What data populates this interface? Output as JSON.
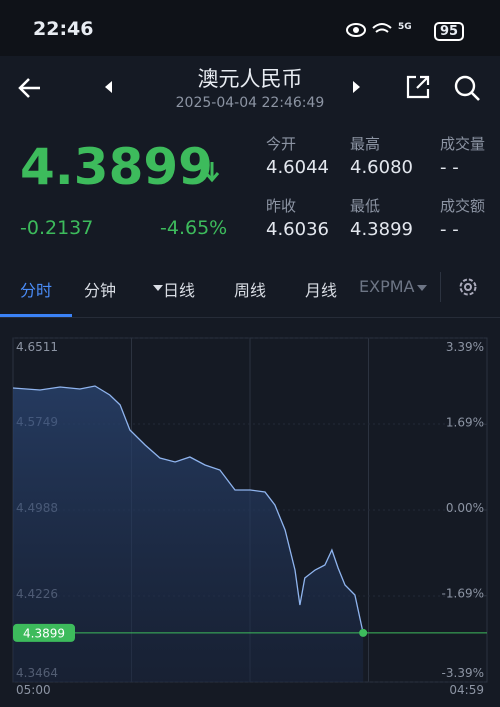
{
  "status": {
    "time": "22:46",
    "network": "5G",
    "battery": "95"
  },
  "header": {
    "title": "澳元人民币",
    "datetime": "2025-04-04 22:46:49"
  },
  "quote": {
    "price": "4.3899",
    "change": "-0.2137",
    "change_pct": "-4.65%",
    "stats": [
      {
        "label": "今开",
        "value": "4.6044"
      },
      {
        "label": "最高",
        "value": "4.6080"
      },
      {
        "label": "成交量",
        "value": "- -"
      },
      {
        "label": "昨收",
        "value": "4.6036"
      },
      {
        "label": "最低",
        "value": "4.3899"
      },
      {
        "label": "成交额",
        "value": "- -"
      }
    ]
  },
  "tabs": [
    "分时",
    "分钟",
    "日线",
    "周线",
    "月线",
    "EXPMA"
  ],
  "chart_data": {
    "type": "line",
    "x": [
      0,
      82,
      143,
      203,
      249,
      294,
      325,
      355,
      401,
      446,
      492,
      537,
      583,
      628,
      674,
      720,
      765,
      795,
      826,
      856,
      871,
      886,
      917,
      947,
      968,
      987,
      1008,
      1038,
      1063
    ],
    "series": [
      {
        "color": "#8fb4ee",
        "values": [
          4.6068,
          4.605,
          4.6077,
          4.6059,
          4.6086,
          4.6006,
          4.5918,
          4.5696,
          4.5563,
          4.5448,
          4.5413,
          4.5457,
          4.5386,
          4.5342,
          4.5165,
          4.5165,
          4.5147,
          4.5032,
          4.481,
          4.4456,
          4.4146,
          4.4385,
          4.4456,
          4.45,
          4.4633,
          4.4474,
          4.4323,
          4.4235,
          4.3899
        ]
      }
    ],
    "xlim": [
      0,
      1439
    ],
    "xticks": [
      {
        "value": 0,
        "label": "05:00"
      },
      {
        "value": 1439,
        "label": "04:59"
      }
    ],
    "ylim": [
      4.3464,
      4.6511
    ],
    "yticks": [
      4.6511,
      4.5749,
      4.4988,
      4.4226,
      4.3464
    ],
    "y2lim": [
      -3.39,
      3.39
    ],
    "y2ticks": [
      {
        "value": 3.39,
        "label": "3.39%"
      },
      {
        "value": 1.69,
        "label": "1.69%"
      },
      {
        "value": 0,
        "label": "0.00%"
      },
      {
        "value": -1.69,
        "label": "-1.69%"
      },
      {
        "value": -3.39,
        "label": "-3.39%"
      }
    ],
    "last_color": "#3dbb5c"
  }
}
